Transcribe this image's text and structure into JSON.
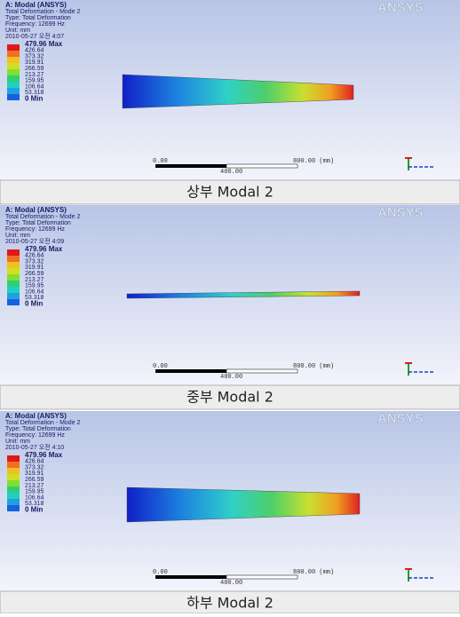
{
  "panels": [
    {
      "header": [
        "A: Modal (ANSYS)",
        "Total Deformation - Mode 2",
        "Type: Total Deformation",
        "Frequency: 12699 Hz",
        "Unit: mm",
        "2010-05-27 오전 4:07"
      ],
      "legend": [
        "479.96 Max",
        "426.64",
        "373.32",
        "319.91",
        "266.59",
        "213.27",
        "159.95",
        "106.64",
        "53.318",
        "0 Min"
      ],
      "scale": [
        "0.00",
        "400.00",
        "800.00 (mm)"
      ],
      "logo": "ANSYS",
      "caption": "상부 Modal 2"
    },
    {
      "header": [
        "A: Modal (ANSYS)",
        "Total Deformation - Mode 2",
        "Type: Total Deformation",
        "Frequency: 12699 Hz",
        "Unit: mm",
        "2010-05-27 오전 4:09"
      ],
      "legend": [
        "479.96 Max",
        "426.64",
        "373.32",
        "319.91",
        "266.59",
        "213.27",
        "159.95",
        "106.64",
        "53.318",
        "0 Min"
      ],
      "scale": [
        "0.00",
        "400.00",
        "800.00 (mm)"
      ],
      "logo": "ANSYS",
      "caption": "중부 Modal 2"
    },
    {
      "header": [
        "A: Modal (ANSYS)",
        "Total Deformation - Mode 2",
        "Type: Total Deformation",
        "Frequency: 12699 Hz",
        "Unit: mm",
        "2010-05-27 오전 4:10"
      ],
      "legend": [
        "479.96 Max",
        "426.64",
        "373.32",
        "319.91",
        "266.59",
        "213.27",
        "159.95",
        "106.64",
        "53.318",
        "0 Min"
      ],
      "scale": [
        "0.00",
        "400.00",
        "800.00 (mm)"
      ],
      "logo": "ANSYS",
      "caption": "하부 Modal 2"
    }
  ]
}
